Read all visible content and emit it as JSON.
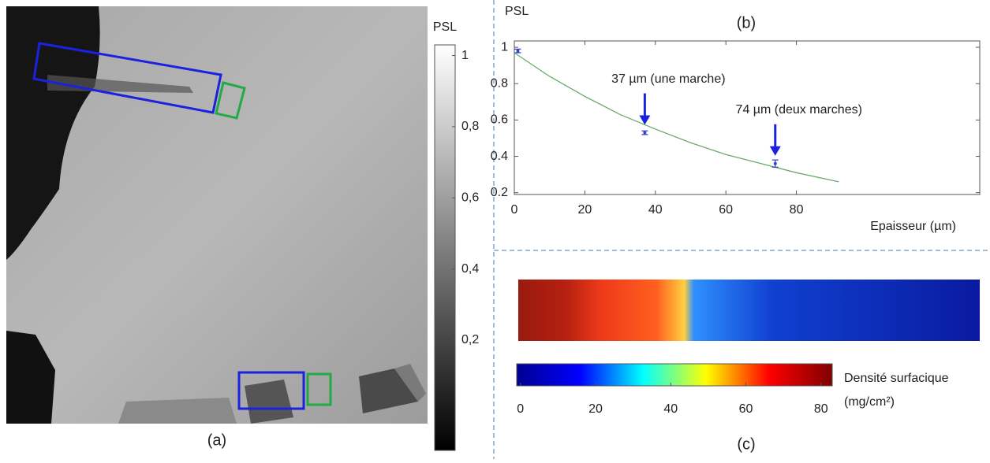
{
  "panels": {
    "a": "(a)",
    "b": "(b)",
    "c": "(c)"
  },
  "chart_data": [
    {
      "type": "image",
      "orientation": "vertical",
      "colorbar_label": "PSL",
      "colors": [
        "#000000",
        "#ffffff"
      ],
      "ylim": [
        -0.11,
        1.03
      ],
      "yticks": [
        {
          "value": 0.2,
          "label": "0,2"
        },
        {
          "value": 0.4,
          "label": "0,4"
        },
        {
          "value": 0.6,
          "label": "0,6"
        },
        {
          "value": 0.8,
          "label": "0,8"
        },
        1
      ]
    },
    {
      "type": "scatter",
      "ylabel": "PSL",
      "xlabel": "Epaisseur (µm)",
      "xlim": [
        0,
        132
      ],
      "xticks": [
        0,
        20,
        40,
        60,
        80
      ],
      "ylim": [
        0.19,
        1.035
      ],
      "yticks": [
        0.2,
        0.4,
        0.6,
        0.8,
        1
      ],
      "points": {
        "x": [
          1,
          37,
          74
        ],
        "y": [
          0.98,
          0.53,
          0.36
        ],
        "err": [
          0.01,
          0.01,
          0.02
        ],
        "color": "#3344cc"
      },
      "fit": {
        "x": [
          0,
          10,
          20,
          30,
          40,
          50,
          60,
          70,
          80,
          92
        ],
        "y": [
          0.97,
          0.84,
          0.73,
          0.63,
          0.55,
          0.475,
          0.41,
          0.36,
          0.31,
          0.26
        ],
        "color": "#6aaa6a"
      },
      "annotations": [
        {
          "text": "37 µm (une marche)",
          "x": 37,
          "y": 0.53
        },
        {
          "text": "74 µm (deux marches)",
          "x": 74,
          "y": 0.36
        }
      ]
    },
    {
      "type": "image",
      "orientation": "horizontal",
      "colorbar_label": [
        "Densité surfacique",
        "(mg/cm²)"
      ],
      "colors": [
        "#00008f",
        "#0000ff",
        "#00ffff",
        "#ffff00",
        "#ff0000",
        "#800000"
      ],
      "xlim": [
        -1,
        83
      ],
      "xticks": [
        0,
        20,
        40,
        60,
        80
      ]
    }
  ]
}
